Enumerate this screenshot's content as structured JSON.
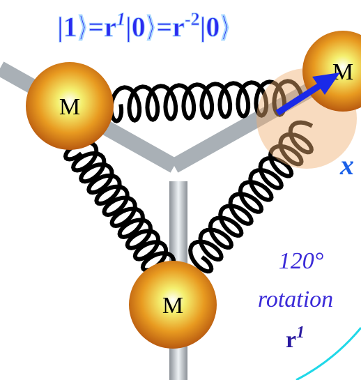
{
  "title": {
    "parts": [
      "|1⟩=r",
      "1",
      "|0⟩=r",
      "-2",
      "|0⟩"
    ]
  },
  "masses": [
    {
      "label": "M"
    },
    {
      "label": "M"
    },
    {
      "label": "M"
    }
  ],
  "vector_label": "x",
  "rotation": {
    "angle": "120°",
    "word": "rotation",
    "operator": "r",
    "operator_exp": "1"
  }
}
